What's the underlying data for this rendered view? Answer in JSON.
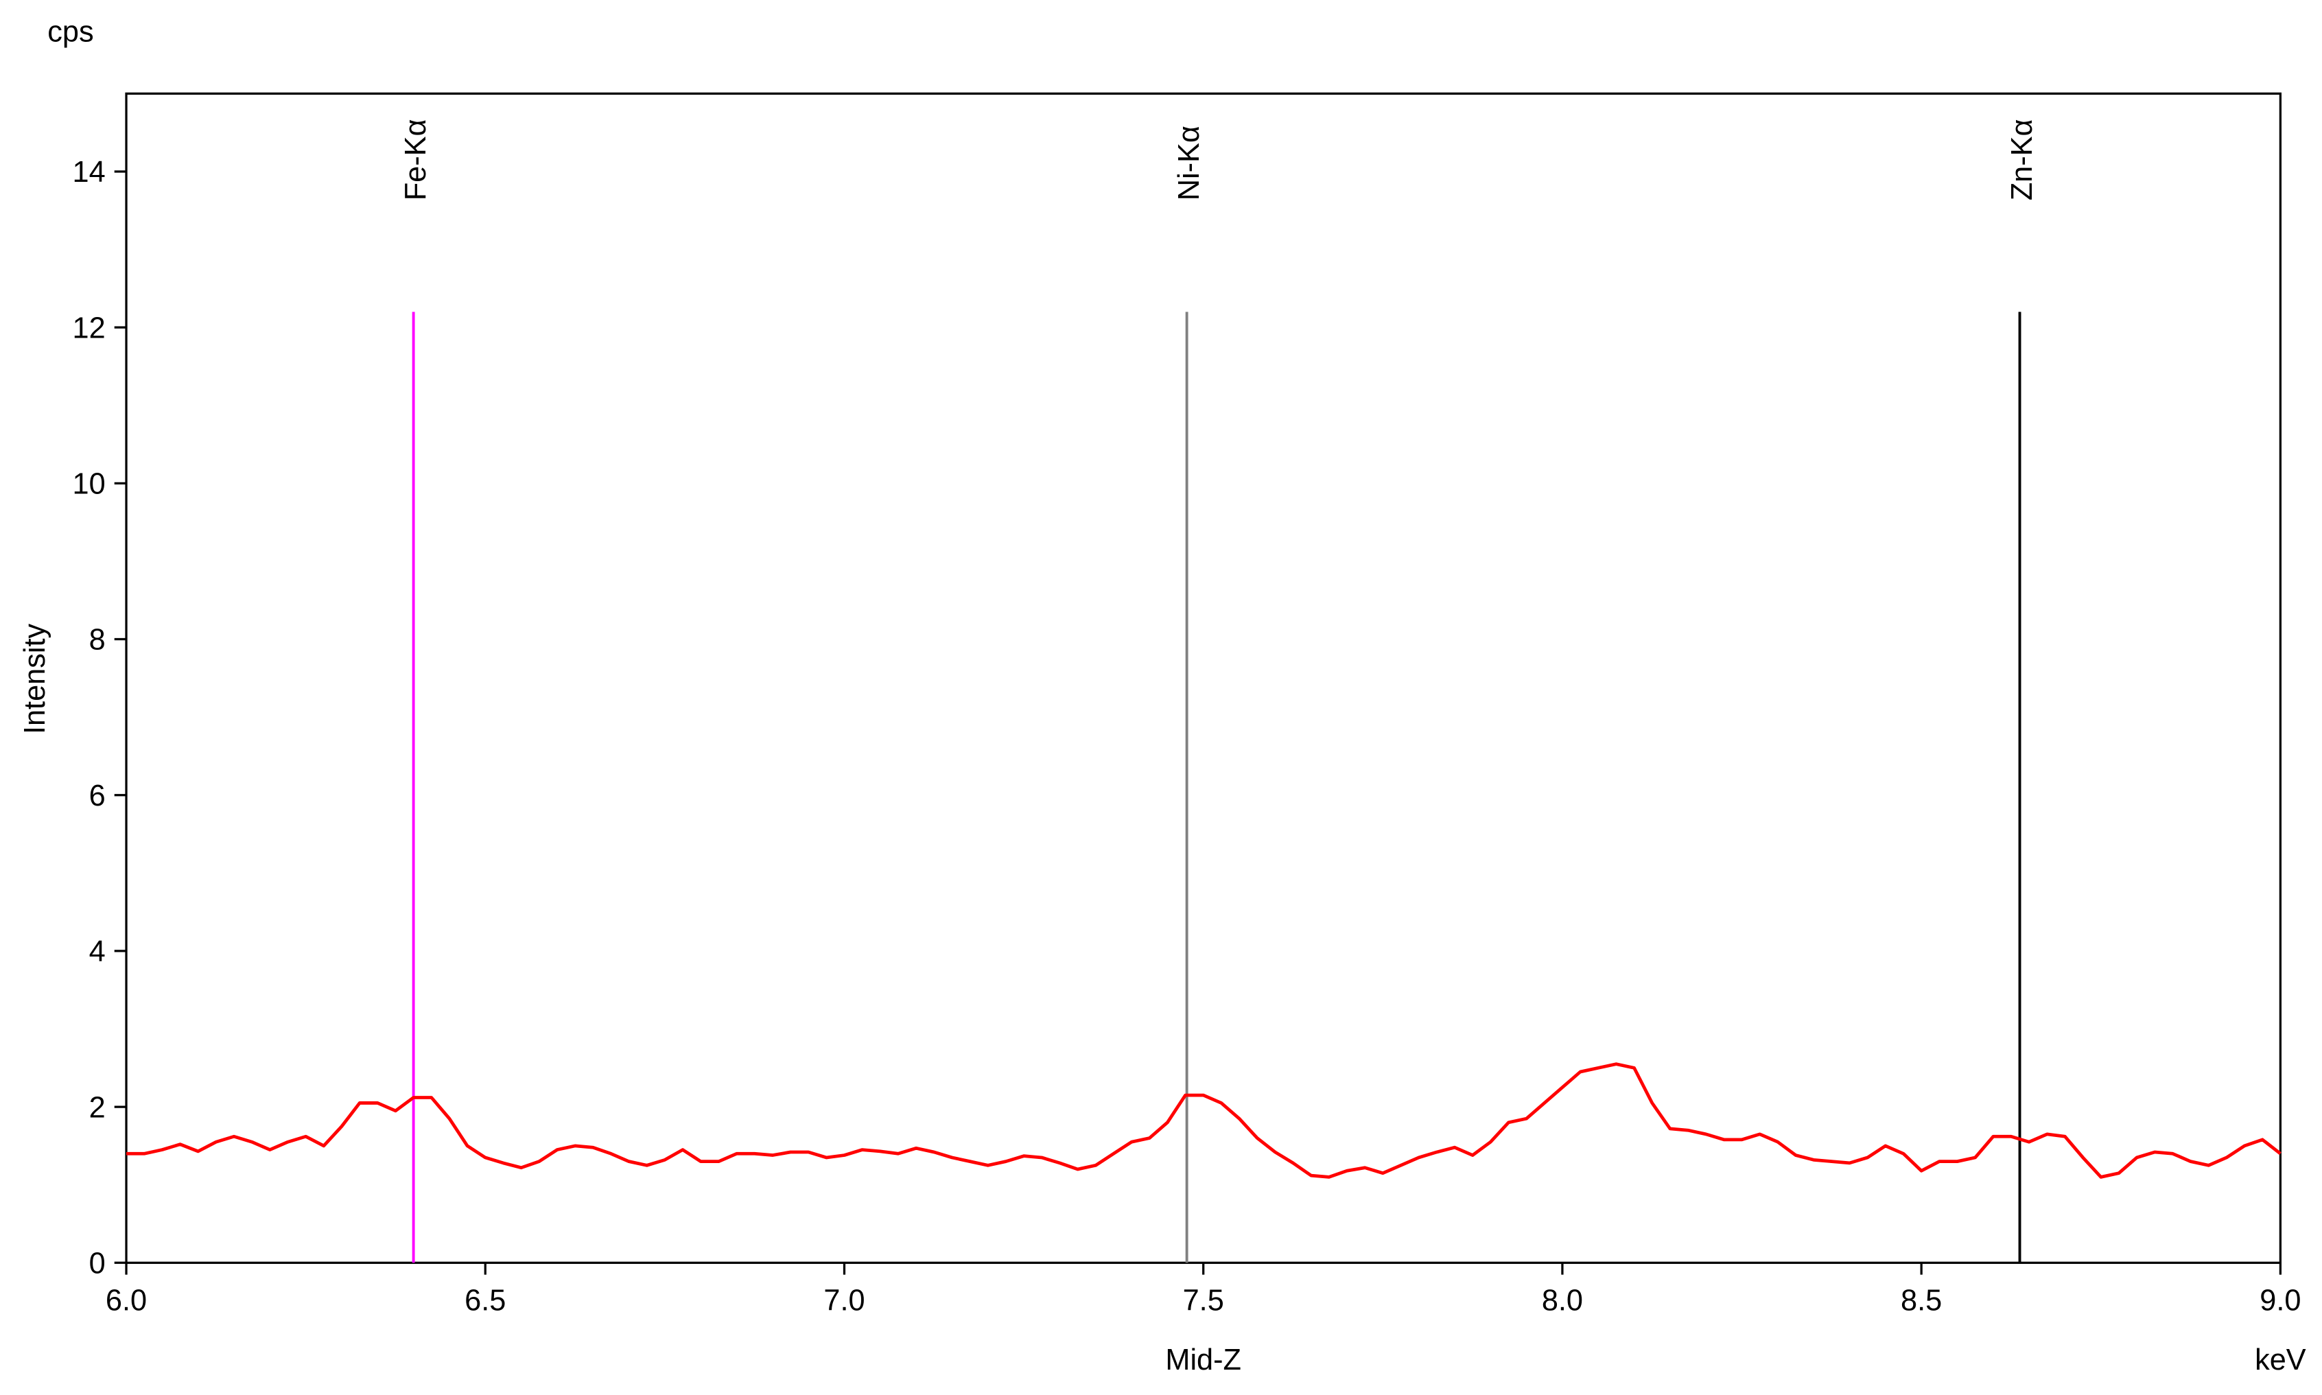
{
  "chart_data": {
    "type": "line",
    "y_unit": "cps",
    "ylabel": "Intensity",
    "xlabel": "Mid-Z",
    "x_unit": "keV",
    "xlim": [
      6,
      9
    ],
    "ylim": [
      0,
      15
    ],
    "xticks": [
      {
        "value": 6,
        "label": "6.0"
      },
      {
        "value": 6.5,
        "label": "6.5"
      },
      {
        "value": 7,
        "label": "7.0"
      },
      {
        "value": 7.5,
        "label": "7.5"
      },
      {
        "value": 8,
        "label": "8.0"
      },
      {
        "value": 8.5,
        "label": "8.5"
      },
      {
        "value": 9,
        "label": "9.0"
      }
    ],
    "yticks": [
      0,
      2,
      4,
      6,
      8,
      10,
      12,
      14
    ],
    "color": "#ff0000",
    "x": [
      6.0,
      6.025,
      6.05,
      6.075,
      6.1,
      6.125,
      6.15,
      6.175,
      6.2,
      6.225,
      6.25,
      6.275,
      6.3,
      6.325,
      6.35,
      6.375,
      6.4,
      6.425,
      6.45,
      6.475,
      6.5,
      6.525,
      6.55,
      6.575,
      6.6,
      6.625,
      6.65,
      6.675,
      6.7,
      6.725,
      6.75,
      6.775,
      6.8,
      6.825,
      6.85,
      6.875,
      6.9,
      6.925,
      6.95,
      6.975,
      7.0,
      7.025,
      7.05,
      7.075,
      7.1,
      7.125,
      7.15,
      7.175,
      7.2,
      7.225,
      7.25,
      7.275,
      7.3,
      7.325,
      7.35,
      7.375,
      7.4,
      7.425,
      7.45,
      7.475,
      7.5,
      7.525,
      7.55,
      7.575,
      7.6,
      7.625,
      7.65,
      7.675,
      7.7,
      7.725,
      7.75,
      7.775,
      7.8,
      7.825,
      7.85,
      7.875,
      7.9,
      7.925,
      7.95,
      7.975,
      8.0,
      8.025,
      8.05,
      8.075,
      8.1,
      8.125,
      8.15,
      8.175,
      8.2,
      8.225,
      8.25,
      8.275,
      8.3,
      8.325,
      8.35,
      8.375,
      8.4,
      8.425,
      8.45,
      8.475,
      8.5,
      8.525,
      8.55,
      8.575,
      8.6,
      8.625,
      8.65,
      8.675,
      8.7,
      8.725,
      8.75,
      8.775,
      8.8,
      8.825,
      8.85,
      8.875,
      8.9,
      8.925,
      8.95,
      8.975,
      9.0
    ],
    "values": [
      1.4,
      1.4,
      1.45,
      1.52,
      1.43,
      1.55,
      1.62,
      1.55,
      1.45,
      1.55,
      1.62,
      1.5,
      1.75,
      2.05,
      2.05,
      1.95,
      2.12,
      2.12,
      1.85,
      1.5,
      1.35,
      1.28,
      1.22,
      1.3,
      1.45,
      1.5,
      1.48,
      1.4,
      1.3,
      1.25,
      1.32,
      1.45,
      1.3,
      1.3,
      1.4,
      1.4,
      1.38,
      1.42,
      1.42,
      1.35,
      1.38,
      1.45,
      1.43,
      1.4,
      1.47,
      1.42,
      1.35,
      1.3,
      1.25,
      1.3,
      1.37,
      1.35,
      1.28,
      1.2,
      1.25,
      1.4,
      1.55,
      1.6,
      1.8,
      2.15,
      2.15,
      2.05,
      1.85,
      1.6,
      1.42,
      1.28,
      1.12,
      1.1,
      1.18,
      1.22,
      1.15,
      1.25,
      1.35,
      1.42,
      1.48,
      1.38,
      1.55,
      1.8,
      1.85,
      2.05,
      2.25,
      2.45,
      2.5,
      2.55,
      2.5,
      2.05,
      1.72,
      1.7,
      1.65,
      1.58,
      1.58,
      1.65,
      1.55,
      1.38,
      1.32,
      1.3,
      1.28,
      1.35,
      1.5,
      1.4,
      1.18,
      1.3,
      1.3,
      1.35,
      1.62,
      1.62,
      1.55,
      1.65,
      1.62,
      1.35,
      1.1,
      1.15,
      1.35,
      1.42,
      1.4,
      1.3,
      1.25,
      1.35,
      1.5,
      1.58,
      1.4
    ],
    "markers": [
      {
        "label": "Fe-Kα",
        "x": 6.4,
        "height": 12.2,
        "color": "#ff00ff"
      },
      {
        "label": "Ni-Kα",
        "x": 7.477,
        "height": 12.2,
        "color": "#808080"
      },
      {
        "label": "Zn-Kα",
        "x": 8.637,
        "height": 12.2,
        "color": "#000000"
      }
    ]
  }
}
